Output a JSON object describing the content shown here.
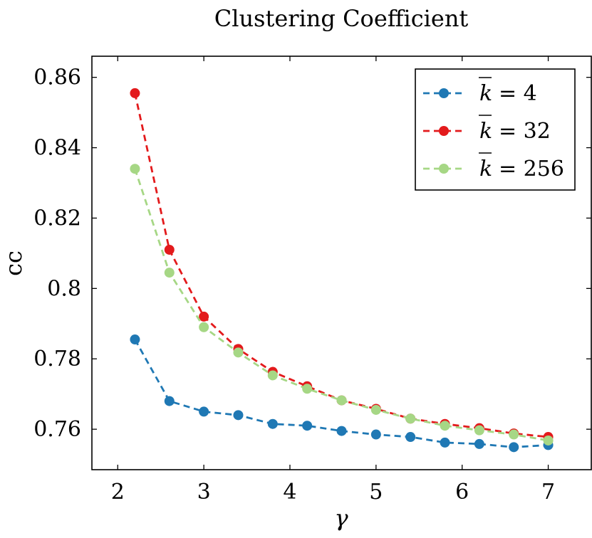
{
  "chart_data": {
    "type": "line",
    "title": "Clustering Coefficient",
    "xlabel": "γ",
    "ylabel": "cc",
    "xlim": [
      1.7,
      7.5
    ],
    "ylim": [
      0.7485,
      0.866
    ],
    "xticks": [
      2,
      3,
      4,
      5,
      6,
      7
    ],
    "xtick_labels": [
      "2",
      "3",
      "4",
      "5",
      "6",
      "7"
    ],
    "yticks": [
      0.76,
      0.78,
      0.8,
      0.82,
      0.84,
      0.86
    ],
    "ytick_labels": [
      "0.76",
      "0.78",
      "0.8",
      "0.82",
      "0.84",
      "0.86"
    ],
    "grid": false,
    "legend_position": "top-right",
    "x": [
      2.2,
      2.6,
      3.0,
      3.4,
      3.8,
      4.2,
      4.6,
      5.0,
      5.4,
      5.8,
      6.2,
      6.6,
      7.0
    ],
    "series": [
      {
        "legend_prefix": "k",
        "legend_value": "= 4",
        "color": "#1f78b4",
        "values": [
          0.7855,
          0.768,
          0.765,
          0.764,
          0.7615,
          0.761,
          0.7595,
          0.7585,
          0.7578,
          0.7562,
          0.7558,
          0.7549,
          0.7555
        ]
      },
      {
        "legend_prefix": "k",
        "legend_value": "= 32",
        "color": "#e31a1c",
        "values": [
          0.8555,
          0.811,
          0.792,
          0.7828,
          0.7763,
          0.7722,
          0.7682,
          0.7658,
          0.763,
          0.7615,
          0.7603,
          0.7588,
          0.7578
        ]
      },
      {
        "legend_prefix": "k",
        "legend_value": "= 256",
        "color": "#a6d785",
        "values": [
          0.834,
          0.8045,
          0.789,
          0.7818,
          0.7753,
          0.7715,
          0.7682,
          0.7655,
          0.763,
          0.761,
          0.7597,
          0.7585,
          0.7568
        ]
      }
    ]
  }
}
